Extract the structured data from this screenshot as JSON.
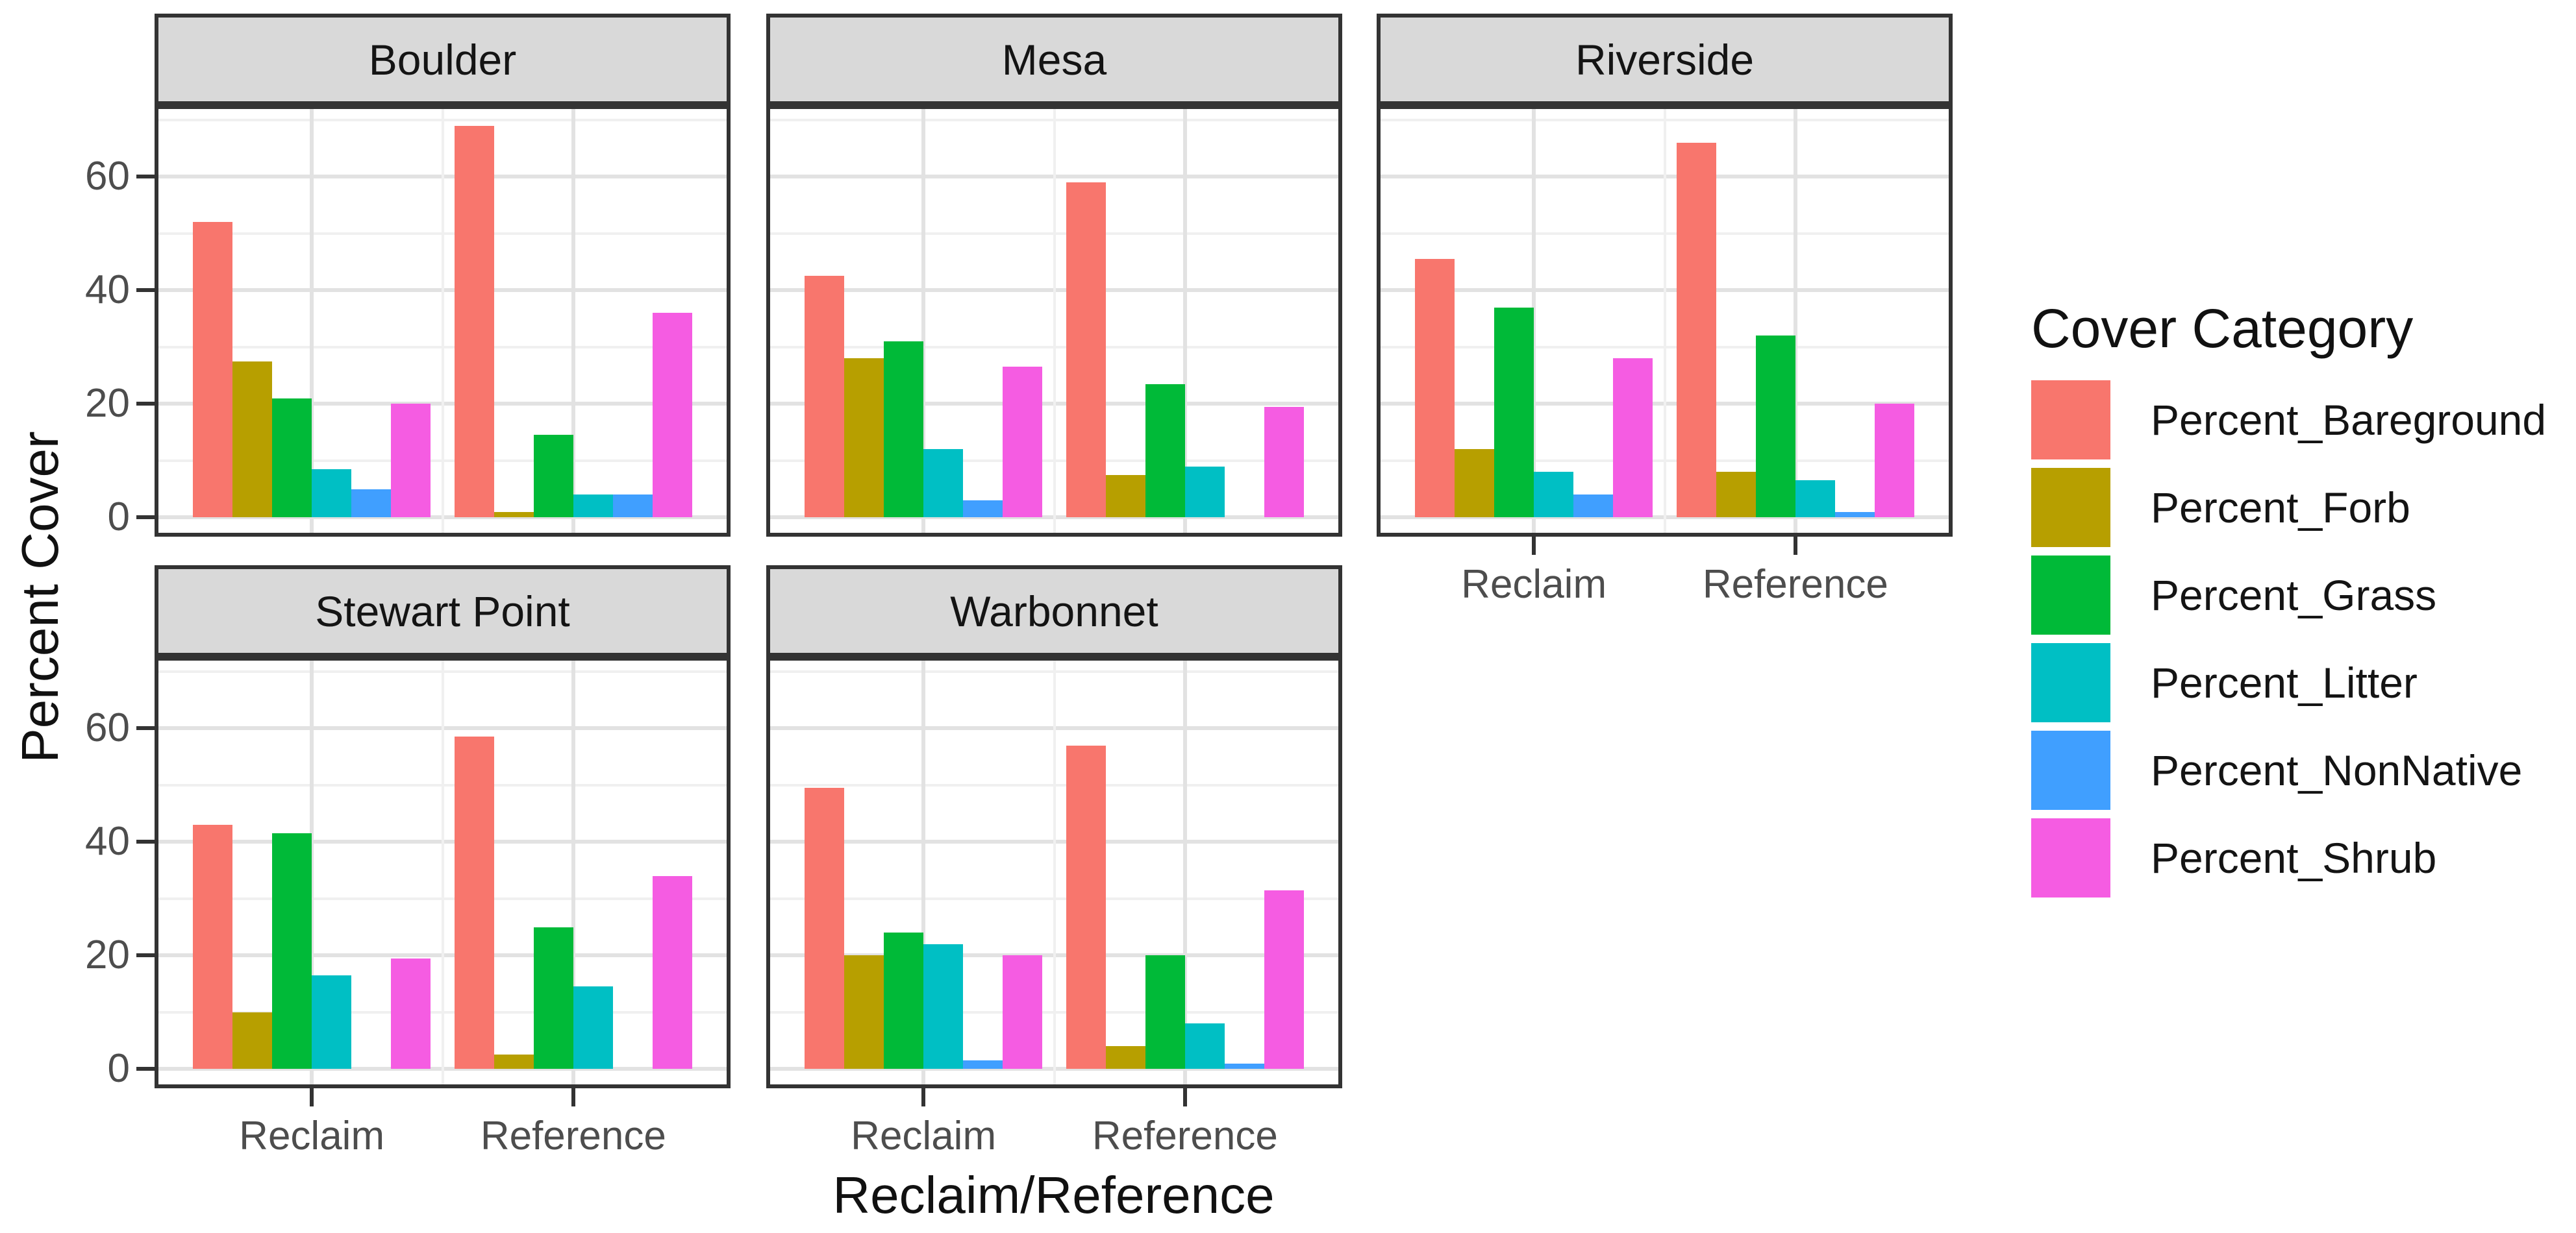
{
  "figure": {
    "y_axis_title": "Percent Cover",
    "x_axis_title": "Reclaim/Reference"
  },
  "legend": {
    "title": "Cover Category",
    "items": [
      {
        "label": "Percent_Bareground",
        "color": "#F8766D"
      },
      {
        "label": "Percent_Forb",
        "color": "#B79F00"
      },
      {
        "label": "Percent_Grass",
        "color": "#00BA38"
      },
      {
        "label": "Percent_Litter",
        "color": "#00BFC4"
      },
      {
        "label": "Percent_NonNative",
        "color": "#409FFF"
      },
      {
        "label": "Percent_Shrub",
        "color": "#F55CE2"
      }
    ]
  },
  "chart_data": {
    "type": "bar",
    "title": "",
    "xlabel": "Reclaim/Reference",
    "ylabel": "Percent Cover",
    "categories": [
      "Reclaim",
      "Reference"
    ],
    "yticks": [
      0,
      20,
      40,
      60
    ],
    "yticks_minor": [
      10,
      30,
      50,
      70
    ],
    "ylim": [
      -3.4,
      72.6
    ],
    "grid": true,
    "legend_position": "right",
    "series_names": [
      "Percent_Bareground",
      "Percent_Forb",
      "Percent_Grass",
      "Percent_Litter",
      "Percent_NonNative",
      "Percent_Shrub"
    ],
    "series_colors": [
      "#F8766D",
      "#B79F00",
      "#00BA38",
      "#00BFC4",
      "#409FFF",
      "#F55CE2"
    ],
    "facets": [
      {
        "name": "Boulder",
        "row": 0,
        "col": 0,
        "show_x_axis": false,
        "series": [
          {
            "name": "Percent_Bareground",
            "values": [
              52,
              69
            ]
          },
          {
            "name": "Percent_Forb",
            "values": [
              27.5,
              1
            ]
          },
          {
            "name": "Percent_Grass",
            "values": [
              21,
              14.5
            ]
          },
          {
            "name": "Percent_Litter",
            "values": [
              8.5,
              4
            ]
          },
          {
            "name": "Percent_NonNative",
            "values": [
              5,
              4
            ]
          },
          {
            "name": "Percent_Shrub",
            "values": [
              20,
              36
            ]
          }
        ]
      },
      {
        "name": "Mesa",
        "row": 0,
        "col": 1,
        "show_x_axis": false,
        "series": [
          {
            "name": "Percent_Bareground",
            "values": [
              42.5,
              59
            ]
          },
          {
            "name": "Percent_Forb",
            "values": [
              28,
              7.5
            ]
          },
          {
            "name": "Percent_Grass",
            "values": [
              31,
              23.5
            ]
          },
          {
            "name": "Percent_Litter",
            "values": [
              12,
              9
            ]
          },
          {
            "name": "Percent_NonNative",
            "values": [
              3,
              0
            ]
          },
          {
            "name": "Percent_Shrub",
            "values": [
              26.5,
              19.5
            ]
          }
        ]
      },
      {
        "name": "Riverside",
        "row": 0,
        "col": 2,
        "show_x_axis": true,
        "series": [
          {
            "name": "Percent_Bareground",
            "values": [
              45.5,
              66
            ]
          },
          {
            "name": "Percent_Forb",
            "values": [
              12,
              8
            ]
          },
          {
            "name": "Percent_Grass",
            "values": [
              37,
              32
            ]
          },
          {
            "name": "Percent_Litter",
            "values": [
              8,
              6.5
            ]
          },
          {
            "name": "Percent_NonNative",
            "values": [
              4,
              1
            ]
          },
          {
            "name": "Percent_Shrub",
            "values": [
              28,
              20
            ]
          }
        ]
      },
      {
        "name": "Stewart Point",
        "row": 1,
        "col": 0,
        "show_x_axis": true,
        "series": [
          {
            "name": "Percent_Bareground",
            "values": [
              43,
              58.5
            ]
          },
          {
            "name": "Percent_Forb",
            "values": [
              10,
              2.5
            ]
          },
          {
            "name": "Percent_Grass",
            "values": [
              41.5,
              25
            ]
          },
          {
            "name": "Percent_Litter",
            "values": [
              16.5,
              14.5
            ]
          },
          {
            "name": "Percent_NonNative",
            "values": [
              0,
              0
            ]
          },
          {
            "name": "Percent_Shrub",
            "values": [
              19.5,
              34
            ]
          }
        ]
      },
      {
        "name": "Warbonnet",
        "row": 1,
        "col": 1,
        "show_x_axis": true,
        "series": [
          {
            "name": "Percent_Bareground",
            "values": [
              49.5,
              57
            ]
          },
          {
            "name": "Percent_Forb",
            "values": [
              20,
              4
            ]
          },
          {
            "name": "Percent_Grass",
            "values": [
              24,
              20
            ]
          },
          {
            "name": "Percent_Litter",
            "values": [
              22,
              8
            ]
          },
          {
            "name": "Percent_NonNative",
            "values": [
              1.5,
              1
            ]
          },
          {
            "name": "Percent_Shrub",
            "values": [
              20,
              31.5
            ]
          }
        ]
      }
    ]
  }
}
